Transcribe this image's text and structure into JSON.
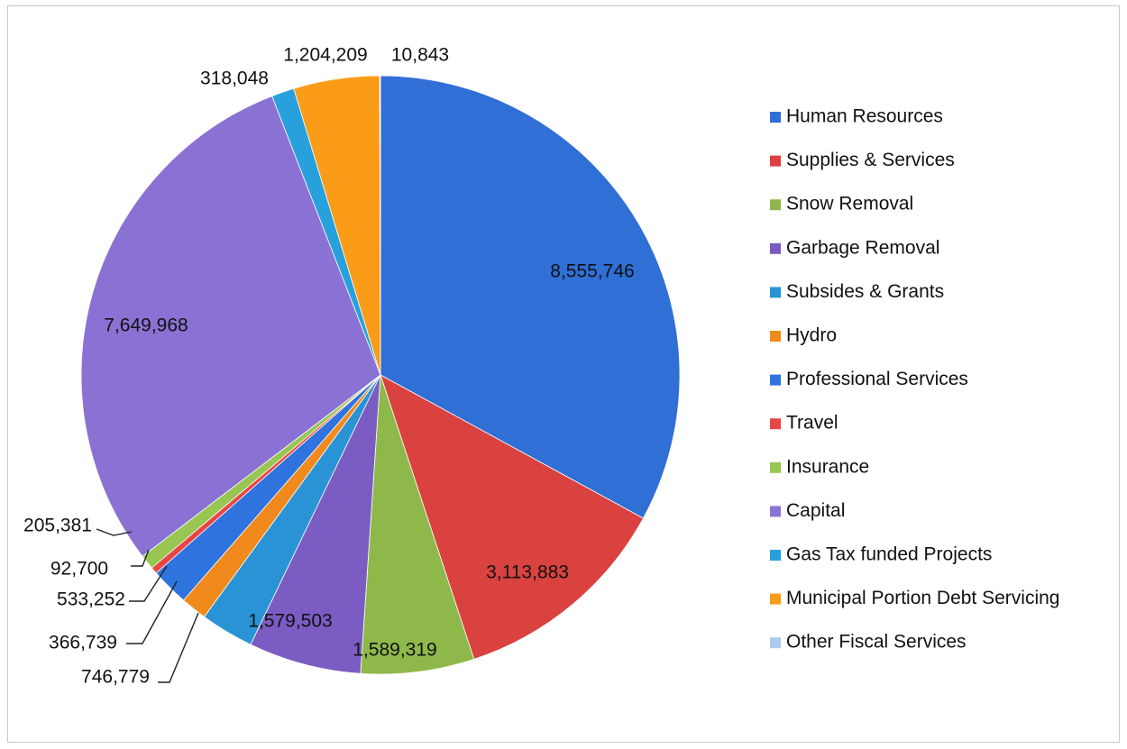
{
  "chart_data": {
    "type": "pie",
    "title": "",
    "legend_position": "right",
    "slices": [
      {
        "name": "Human Resources",
        "value": 8555746,
        "label": "8,555,746",
        "color": "#2f6fd6"
      },
      {
        "name": "Supplies & Services",
        "value": 3113883,
        "label": "3,113,883",
        "color": "#d9423f"
      },
      {
        "name": "Snow Removal",
        "value": 1589319,
        "label": "1,589,319",
        "color": "#8fb84a"
      },
      {
        "name": "Garbage Removal",
        "value": 1579503,
        "label": "1,579,503",
        "color": "#7a5cc2"
      },
      {
        "name": "Subsides & Grants",
        "value": 746779,
        "label": "746,779",
        "color": "#2a93d6"
      },
      {
        "name": "Hydro",
        "value": 366739,
        "label": "366,739",
        "color": "#f08a1c"
      },
      {
        "name": "Professional Services",
        "value": 533252,
        "label": "533,252",
        "color": "#2f73de"
      },
      {
        "name": "Travel",
        "value": 92700,
        "label": "92,700",
        "color": "#e84545"
      },
      {
        "name": "Insurance",
        "value": 205381,
        "label": "205,381",
        "color": "#98c652"
      },
      {
        "name": "Capital",
        "value": 7649968,
        "label": "7,649,968",
        "color": "#8a72d4"
      },
      {
        "name": "Gas Tax funded Projects",
        "value": 318048,
        "label": "318,048",
        "color": "#27a0dc"
      },
      {
        "name": "Municipal Portion Debt Servicing",
        "value": 1204209,
        "label": "1,204,209",
        "color": "#fa9c18"
      },
      {
        "name": "Other Fiscal Services",
        "value": 10843,
        "label": "10,843",
        "color": "#aec8ef"
      }
    ]
  }
}
